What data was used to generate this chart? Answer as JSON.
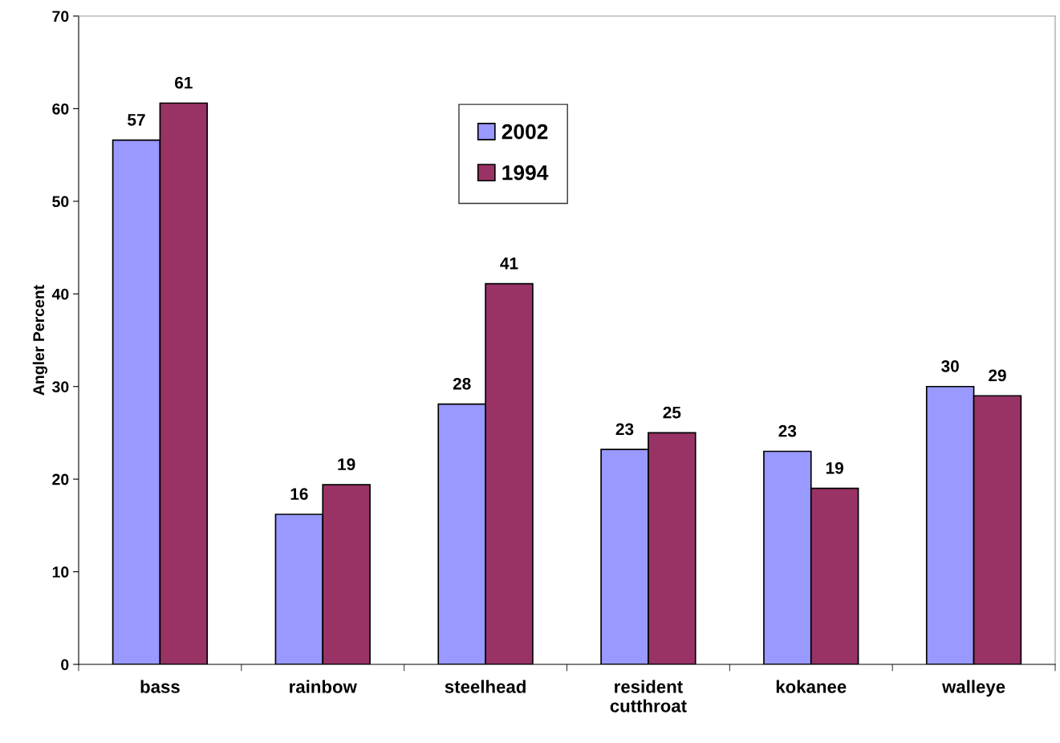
{
  "chart_data": {
    "type": "bar",
    "ylabel": "Angler Percent",
    "categories": [
      "bass",
      "rainbow",
      "steelhead",
      "resident\ncutthroat",
      "kokanee",
      "walleye"
    ],
    "series": [
      {
        "name": "2002",
        "color": "#9999ff",
        "values": [
          56.6,
          16.2,
          28.1,
          23.2,
          23.0,
          30.0
        ],
        "value_labels": [
          "57",
          "16",
          "28",
          "23",
          "23",
          "30"
        ]
      },
      {
        "name": "1994",
        "color": "#993366",
        "values": [
          60.6,
          19.4,
          41.1,
          25.0,
          19.0,
          29.0
        ],
        "value_labels": [
          "61",
          "19",
          "41",
          "25",
          "19",
          "29"
        ]
      }
    ],
    "ylim": [
      0,
      70
    ],
    "yticks": [
      0,
      10,
      20,
      30,
      40,
      50,
      60,
      70
    ],
    "grid": false,
    "legend": "top"
  }
}
